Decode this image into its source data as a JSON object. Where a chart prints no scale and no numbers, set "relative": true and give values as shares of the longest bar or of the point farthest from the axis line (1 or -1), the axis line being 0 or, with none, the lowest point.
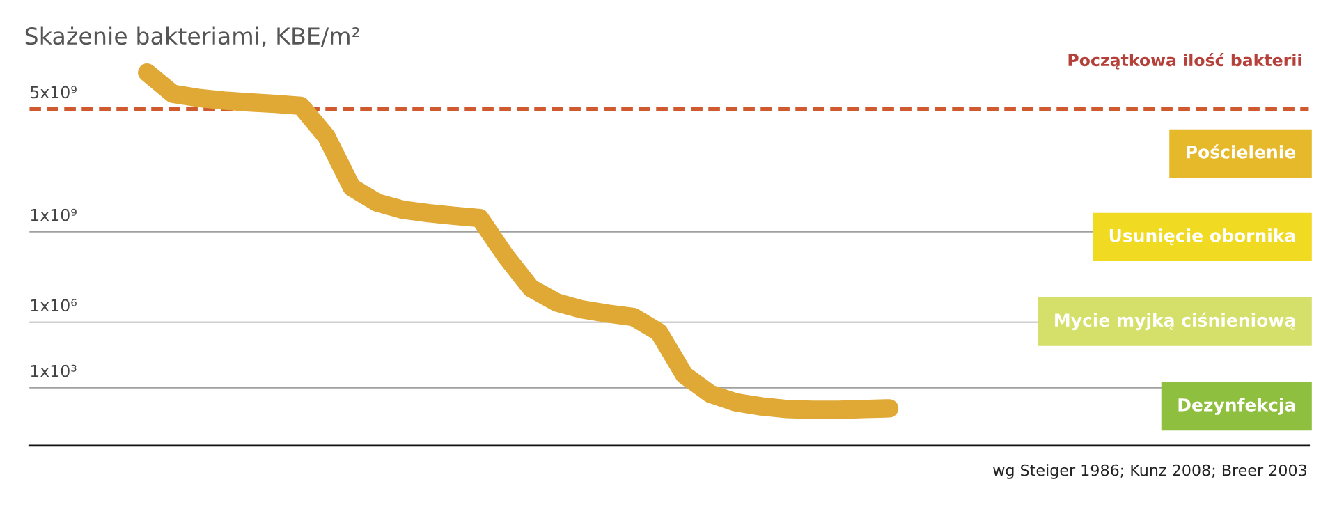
{
  "chart_data": {
    "type": "line",
    "title": "Skażenie bakteriami, KBE/m²",
    "relative": true,
    "categories": [
      null,
      null,
      null,
      null,
      null,
      null,
      null,
      null,
      null,
      null,
      null,
      null,
      null,
      null,
      null,
      null,
      null,
      null,
      null,
      null,
      null,
      null,
      null,
      null,
      null,
      null,
      null,
      null,
      null,
      null
    ],
    "series": [
      {
        "color": "#e0a834",
        "values": [
          1.0,
          0.943,
          0.932,
          0.925,
          0.92,
          0.916,
          0.911,
          0.829,
          0.692,
          0.651,
          0.632,
          0.623,
          0.616,
          0.61,
          0.509,
          0.422,
          0.384,
          0.365,
          0.354,
          0.345,
          0.304,
          0.189,
          0.139,
          0.116,
          0.105,
          0.098,
          0.096,
          0.096,
          0.098,
          0.1
        ]
      }
    ],
    "ref_lines": [
      {
        "axis": "y",
        "value": 0.902,
        "label": "5x10⁹",
        "color": "#d05a30",
        "line_style": "dashed"
      },
      {
        "axis": "y",
        "value": 0.573,
        "label": "1x10⁹",
        "color": "#a0a0a0",
        "line_style": "solid"
      },
      {
        "axis": "y",
        "value": 0.331,
        "label": "1x10⁶",
        "color": "#a0a0a0",
        "line_style": "solid"
      },
      {
        "axis": "y",
        "value": 0.155,
        "label": "1x10³",
        "color": "#a0a0a0",
        "line_style": "solid"
      }
    ],
    "annotations": [
      "Początkowa ilość bakterii",
      "Pościelenie",
      "Usunięcie obornika",
      "Mycie myjką ciśnieniową",
      "Dezynfekcja",
      "wg Steiger 1986; Kunz 2008; Breer 2003"
    ],
    "grid": false,
    "legend": false,
    "line_style": "solid"
  }
}
